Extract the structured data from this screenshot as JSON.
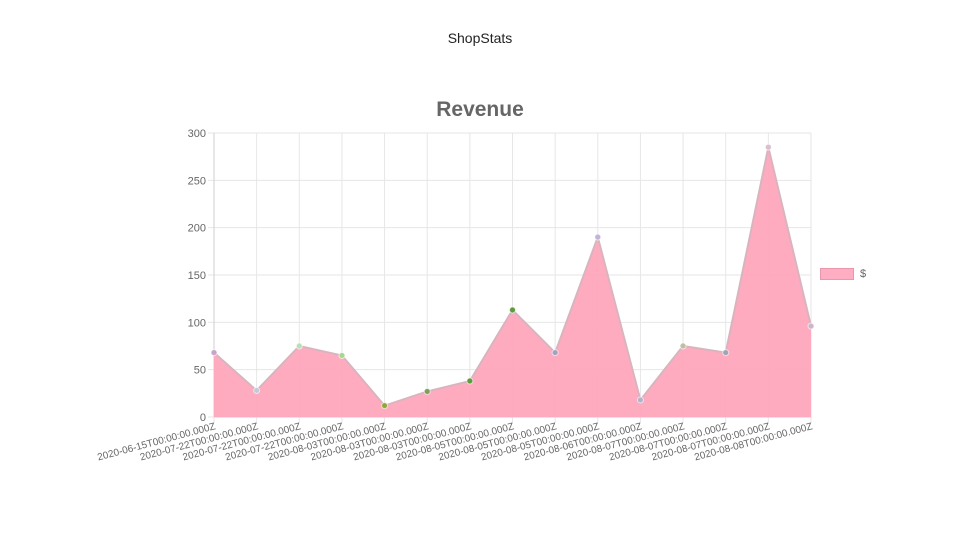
{
  "app": {
    "title": "ShopStats"
  },
  "colors": {
    "area_fill": "#ffa6bc",
    "area_line": "#d9b4bf",
    "grid": "#e6e6e6",
    "tick_text": "#666666"
  },
  "chart_data": {
    "type": "area",
    "title": "Revenue",
    "xlabel": "",
    "ylabel": "",
    "ylim": [
      0,
      300
    ],
    "yticks": [
      0,
      50,
      100,
      150,
      200,
      250,
      300
    ],
    "grid": true,
    "legend_position": "right",
    "categories": [
      "2020-06-15T00:00:00.000Z",
      "2020-07-22T00:00:00.000Z",
      "2020-07-22T00:00:00.000Z",
      "2020-07-22T00:00:00.000Z",
      "2020-08-03T00:00:00.000Z",
      "2020-08-03T00:00:00.000Z",
      "2020-08-03T00:00:00.000Z",
      "2020-08-05T00:00:00.000Z",
      "2020-08-05T00:00:00.000Z",
      "2020-08-05T00:00:00.000Z",
      "2020-08-06T00:00:00.000Z",
      "2020-08-07T00:00:00.000Z",
      "2020-08-07T00:00:00.000Z",
      "2020-08-07T00:00:00.000Z",
      "2020-08-08T00:00:00.000Z"
    ],
    "series": [
      {
        "name": "$",
        "values": [
          68,
          28,
          75,
          65,
          12,
          27,
          38,
          113,
          68,
          190,
          18,
          75,
          68,
          285,
          96
        ],
        "point_colors": [
          "#c9a3c9",
          "#c7c7d9",
          "#b9dfb9",
          "#a6d98f",
          "#8fa83a",
          "#7fa05a",
          "#5f9a3f",
          "#5f9a3f",
          "#a3a3bf",
          "#c4b3d9",
          "#b3b3cc",
          "#bfbfa3",
          "#a3a3b3",
          "#d9bfcf",
          "#c9b8c9"
        ]
      }
    ]
  }
}
